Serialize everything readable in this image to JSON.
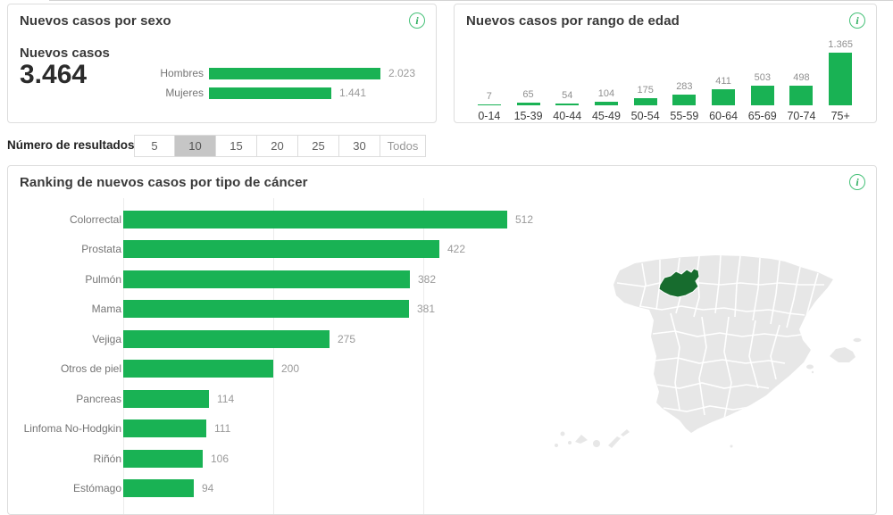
{
  "results_bar": {
    "label": "Número de resultados:",
    "options": [
      "5",
      "10",
      "15",
      "20",
      "25",
      "30",
      "Todos"
    ],
    "selected": "10"
  },
  "chart_data": [
    {
      "id": "sexo",
      "type": "bar",
      "orientation": "horizontal",
      "title": "Nuevos casos por sexo",
      "total_label": "Nuevos casos",
      "total_value": "3.464",
      "categories": [
        "Hombres",
        "Mujeres"
      ],
      "values": [
        2023,
        1441
      ],
      "value_labels": [
        "2.023",
        "1.441"
      ],
      "bar_color": "#19b254",
      "legend_position": "none",
      "grid": false
    },
    {
      "id": "edad",
      "type": "bar",
      "orientation": "vertical",
      "title": "Nuevos casos por rango de edad",
      "categories": [
        "0-14",
        "15-39",
        "40-44",
        "45-49",
        "50-54",
        "55-59",
        "60-64",
        "65-69",
        "70-74",
        "75+"
      ],
      "values": [
        7,
        65,
        54,
        104,
        175,
        283,
        411,
        503,
        498,
        1365
      ],
      "value_labels": [
        "7",
        "65",
        "54",
        "104",
        "175",
        "283",
        "411",
        "503",
        "498",
        "1.365"
      ],
      "bar_color": "#19b254",
      "legend_position": "none",
      "grid": false
    },
    {
      "id": "ranking",
      "type": "bar",
      "orientation": "horizontal",
      "title": "Ranking de nuevos casos por tipo de cáncer",
      "categories": [
        "Colorrectal",
        "Prostata",
        "Pulmón",
        "Mama",
        "Vejiga",
        "Otros de piel",
        "Pancreas",
        "Linfoma No-Hodgkin",
        "Riñón",
        "Estómago"
      ],
      "values": [
        512,
        422,
        382,
        381,
        275,
        200,
        114,
        111,
        106,
        94
      ],
      "value_labels": [
        "512",
        "422",
        "382",
        "381",
        "275",
        "200",
        "114",
        "111",
        "106",
        "94"
      ],
      "axis_gridline_values": [
        0,
        200,
        400
      ],
      "xlim": [
        0,
        512
      ],
      "bar_color": "#19b254",
      "legend_position": "none",
      "grid": true
    }
  ],
  "map": {
    "region": "España por provincias",
    "highlighted_province": "León",
    "base_fill": "#e7e7e7",
    "border_color": "#ffffff",
    "highlight_fill": "#176c2e"
  },
  "icons": {
    "info": "i"
  }
}
